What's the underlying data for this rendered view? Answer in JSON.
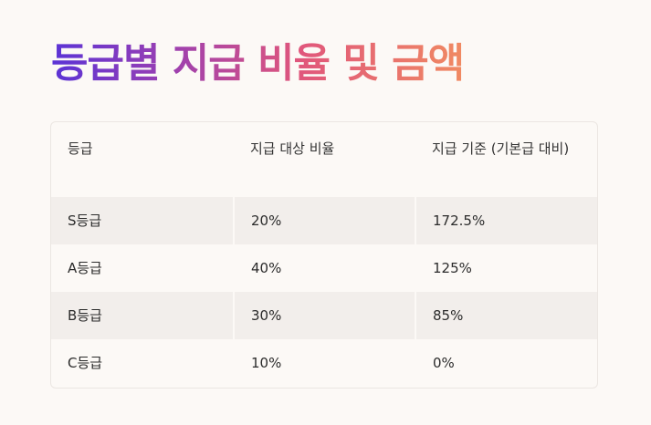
{
  "title": "등급별 지급 비율 및 금액",
  "table": {
    "headers": [
      "등급",
      "지급 대상 비율",
      "지급 기준 (기본급 대비)"
    ],
    "rows": [
      [
        "S등급",
        "20%",
        "172.5%"
      ],
      [
        "A등급",
        "40%",
        "125%"
      ],
      [
        "B등급",
        "30%",
        "85%"
      ],
      [
        "C등급",
        "10%",
        "0%"
      ]
    ]
  },
  "colors": {
    "background": "#fcf9f6",
    "row_shade": "#f2eeeb",
    "title_gradient": [
      "#5a33d6",
      "#9a3fb2",
      "#e0567c",
      "#f08a62"
    ]
  }
}
